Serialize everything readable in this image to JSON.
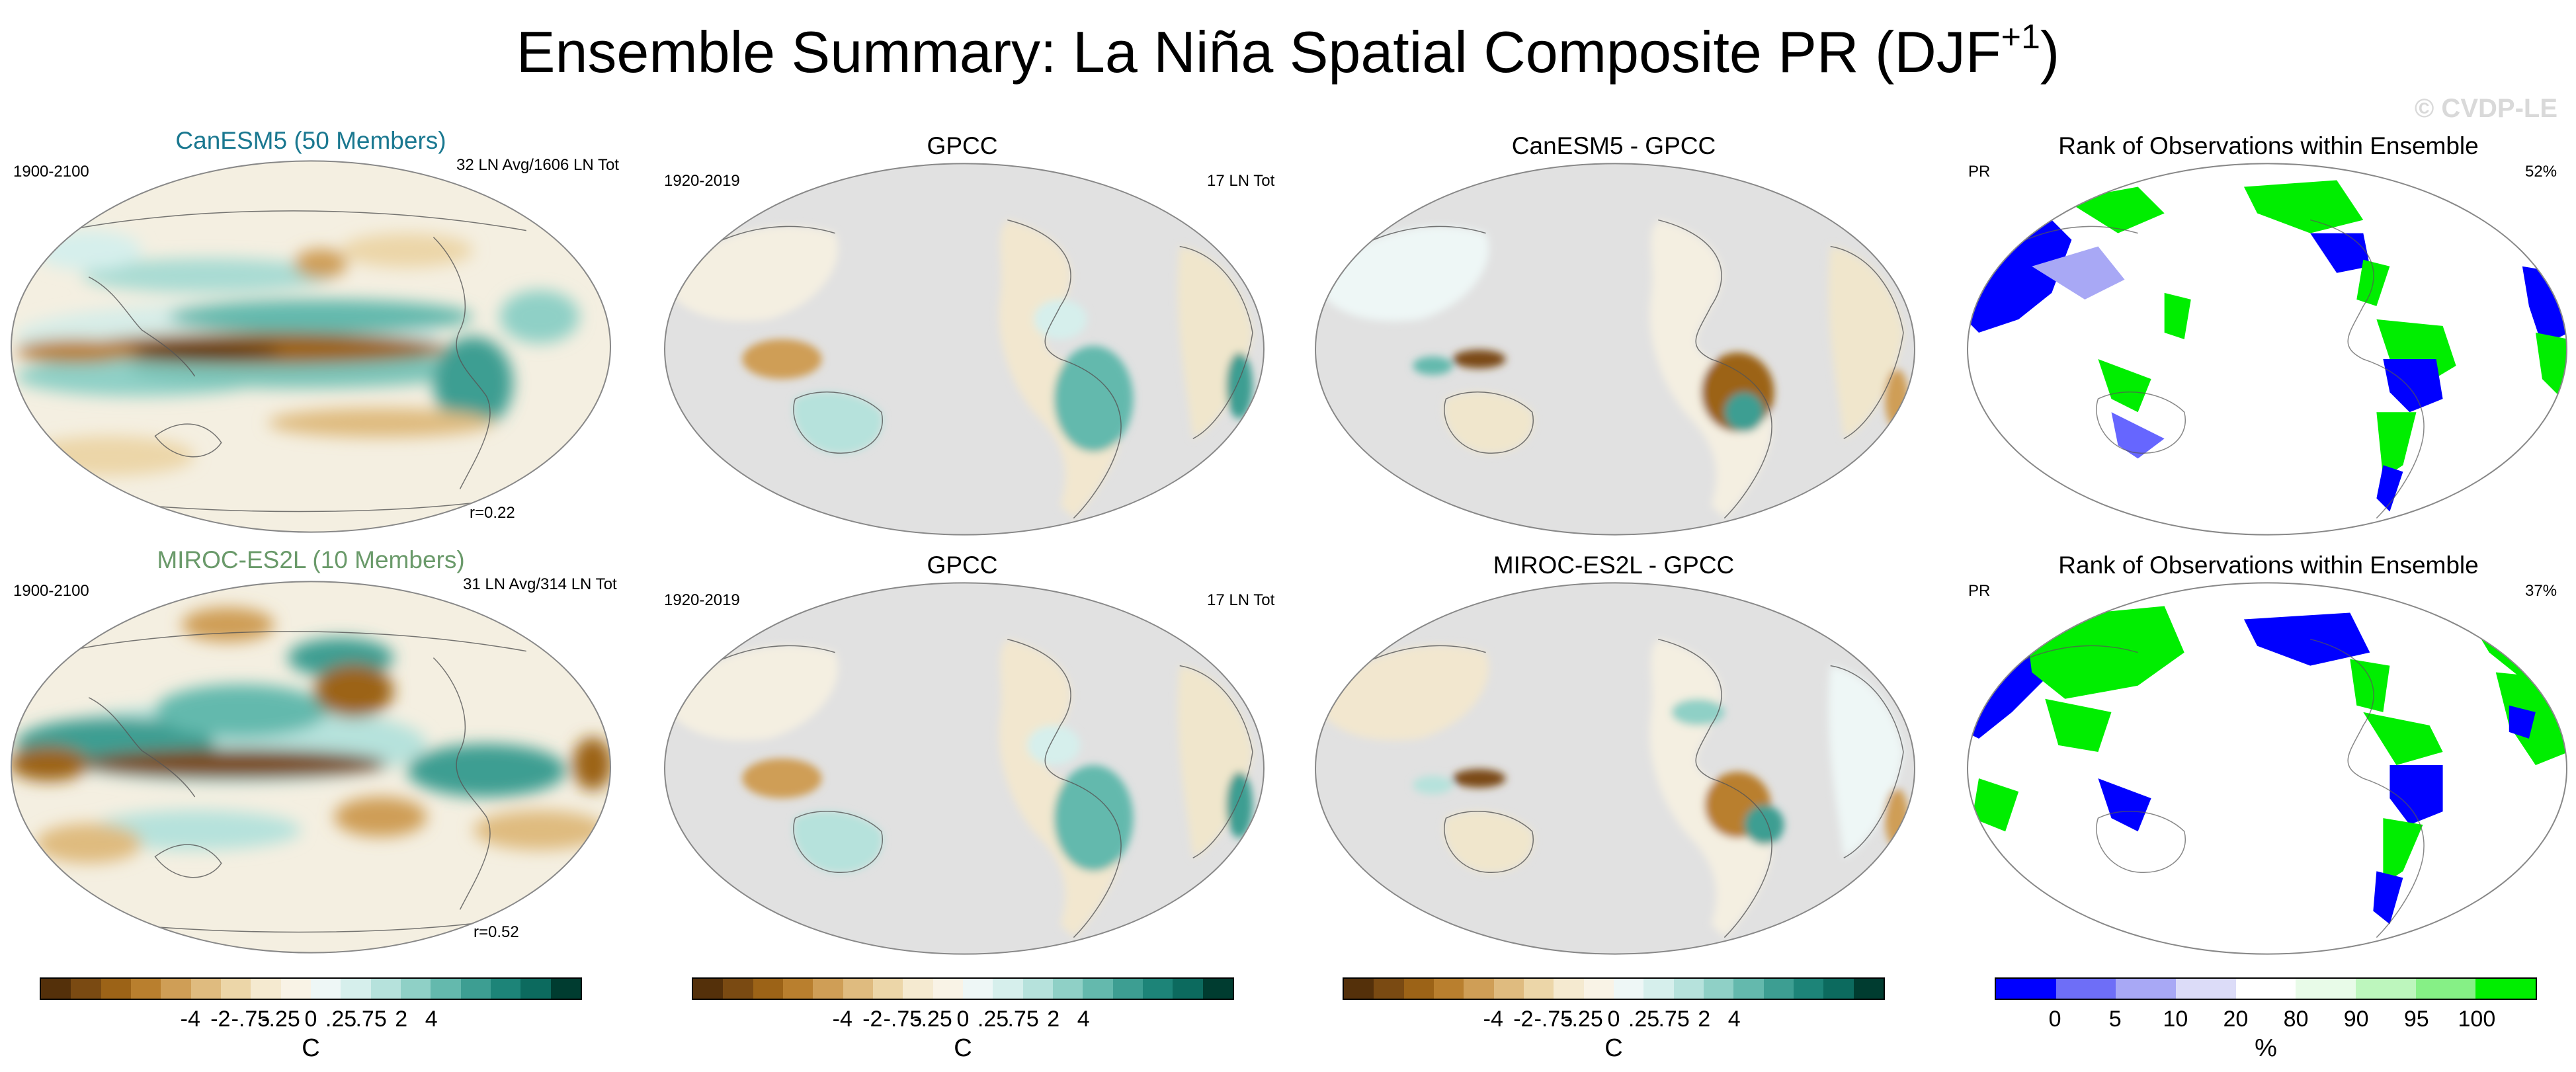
{
  "title": {
    "main": "Ensemble Summary: La Niña Spatial Composite PR (DJF",
    "sup": "+1",
    "close": ")"
  },
  "watermark": "© CVDP-LE",
  "rows": [
    {
      "model": {
        "title": "CanESM5 (50 Members)",
        "title_color": "#1a7890",
        "period": "1900-2100",
        "info": "32 LN Avg/1606 LN Tot",
        "corr": "r=0.22"
      },
      "obs": {
        "title": "GPCC",
        "period": "1920-2019",
        "info": "17 LN Tot"
      },
      "diff": {
        "title": "CanESM5 - GPCC"
      },
      "rank": {
        "title": "Rank of Observations within Ensemble",
        "var": "PR",
        "pct": "52%"
      }
    },
    {
      "model": {
        "title": "MIROC-ES2L (10 Members)",
        "title_color": "#6a9a6a",
        "period": "1900-2100",
        "info": "31 LN Avg/314 LN Tot",
        "corr": "r=0.52"
      },
      "obs": {
        "title": "GPCC",
        "period": "1920-2019",
        "info": "17 LN Tot"
      },
      "diff": {
        "title": "MIROC-ES2L - GPCC"
      },
      "rank": {
        "title": "Rank of Observations within Ensemble",
        "var": "PR",
        "pct": "37%"
      }
    }
  ],
  "colorbars": {
    "anomaly": {
      "colors": [
        "#54300a",
        "#7a4a12",
        "#9c6317",
        "#b97f2e",
        "#cf9e56",
        "#dfbb7f",
        "#ecd6a8",
        "#f5ead0",
        "#f9f3e6",
        "#eef7f6",
        "#d6efec",
        "#b6e2dc",
        "#8fd0c6",
        "#64b9ad",
        "#3d9e92",
        "#1d8478",
        "#0c6a5e",
        "#003c30"
      ],
      "ticks": [
        "-4",
        "-2",
        "-.75",
        "-.25",
        "0",
        ".25",
        ".75",
        "2",
        "4"
      ],
      "unit": "C"
    },
    "rank": {
      "colors": [
        "#0000ff",
        "#6e6ef7",
        "#a8a8f5",
        "#dcdcf8",
        "#ffffff",
        "#e8fbe8",
        "#bdf6bd",
        "#86f086",
        "#00ee00"
      ],
      "ticks": [
        "0",
        "5",
        "10",
        "20",
        "80",
        "90",
        "95",
        "100"
      ],
      "unit": "%"
    }
  }
}
